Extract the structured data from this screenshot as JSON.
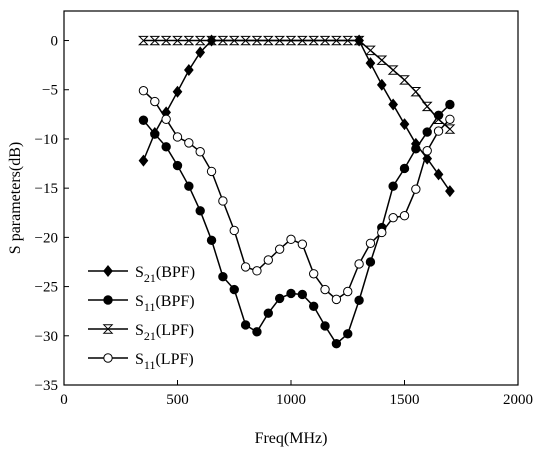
{
  "chart_data": {
    "type": "line",
    "title": "",
    "xlabel": "Freq(MHz)",
    "ylabel": "S parameters(dB)",
    "xlim": [
      0,
      2000
    ],
    "ylim": [
      -35,
      3
    ],
    "xticks": [
      0,
      500,
      1000,
      1500,
      2000
    ],
    "yticks": [
      0,
      -5,
      -10,
      -15,
      -20,
      -25,
      -30,
      -35
    ],
    "grid": false,
    "legend_position": "bottom-left",
    "series": [
      {
        "name": "S21(BPF)",
        "name_main": "S",
        "name_sub": "21",
        "name_tail": "(BPF)",
        "marker": "diamond-filled",
        "color": "#000000",
        "x": [
          350,
          400,
          450,
          500,
          550,
          600,
          650,
          1300,
          1350,
          1400,
          1450,
          1500,
          1550,
          1600,
          1650,
          1700
        ],
        "y": [
          -12.2,
          -9.4,
          -7.3,
          -5.2,
          -3.0,
          -1.2,
          0,
          0,
          -2.3,
          -4.5,
          -6.5,
          -8.5,
          -10.5,
          -12,
          -13.6,
          -15.3
        ]
      },
      {
        "name": "S11(BPF)",
        "name_main": "S",
        "name_sub": "11",
        "name_tail": "(BPF)",
        "marker": "circle-filled",
        "color": "#000000",
        "x": [
          350,
          400,
          450,
          500,
          550,
          600,
          650,
          700,
          750,
          800,
          850,
          900,
          950,
          1000,
          1050,
          1100,
          1150,
          1200,
          1250,
          1300,
          1350,
          1400,
          1450,
          1500,
          1550,
          1600,
          1650,
          1700
        ],
        "y": [
          -8.1,
          -9.5,
          -10.8,
          -12.7,
          -14.8,
          -17.3,
          -20.3,
          -24.0,
          -25.3,
          -28.9,
          -29.6,
          -27.7,
          -26.2,
          -25.7,
          -25.8,
          -27.0,
          -29.0,
          -30.8,
          -29.8,
          -26.4,
          -22.5,
          -19.0,
          -14.8,
          -13.0,
          -11.0,
          -9.3,
          -7.6,
          -6.5
        ]
      },
      {
        "name": "S21(LPF)",
        "name_main": "S",
        "name_sub": "21",
        "name_tail": "(LPF)",
        "marker": "hourglass-open",
        "color": "#000000",
        "x": [
          350,
          400,
          450,
          500,
          550,
          600,
          650,
          700,
          750,
          800,
          850,
          900,
          950,
          1000,
          1050,
          1100,
          1150,
          1200,
          1250,
          1300,
          1350,
          1400,
          1450,
          1500,
          1550,
          1600,
          1650,
          1700
        ],
        "y": [
          0,
          0,
          0,
          0,
          0,
          0,
          0,
          0,
          0,
          0,
          0,
          0,
          0,
          0,
          0,
          0,
          0,
          0,
          0,
          0,
          -1.0,
          -2.0,
          -3.0,
          -4.0,
          -5.2,
          -6.7,
          -8.0,
          -9.0
        ]
      },
      {
        "name": "S11(LPF)",
        "name_main": "S",
        "name_sub": "11",
        "name_tail": "(LPF)",
        "marker": "circle-open",
        "color": "#000000",
        "x": [
          350,
          400,
          450,
          500,
          550,
          600,
          650,
          700,
          750,
          800,
          850,
          900,
          950,
          1000,
          1050,
          1100,
          1150,
          1200,
          1250,
          1300,
          1350,
          1400,
          1450,
          1500,
          1550,
          1600,
          1650,
          1700
        ],
        "y": [
          -5.1,
          -6.2,
          -8.0,
          -9.8,
          -10.4,
          -11.3,
          -13.3,
          -16.3,
          -19.3,
          -23.0,
          -23.4,
          -22.3,
          -21.2,
          -20.2,
          -20.7,
          -23.7,
          -25.3,
          -26.3,
          -25.5,
          -22.7,
          -20.6,
          -19.5,
          -18.0,
          -17.8,
          -15.1,
          -11.2,
          -9.2,
          -8.0
        ]
      }
    ]
  }
}
